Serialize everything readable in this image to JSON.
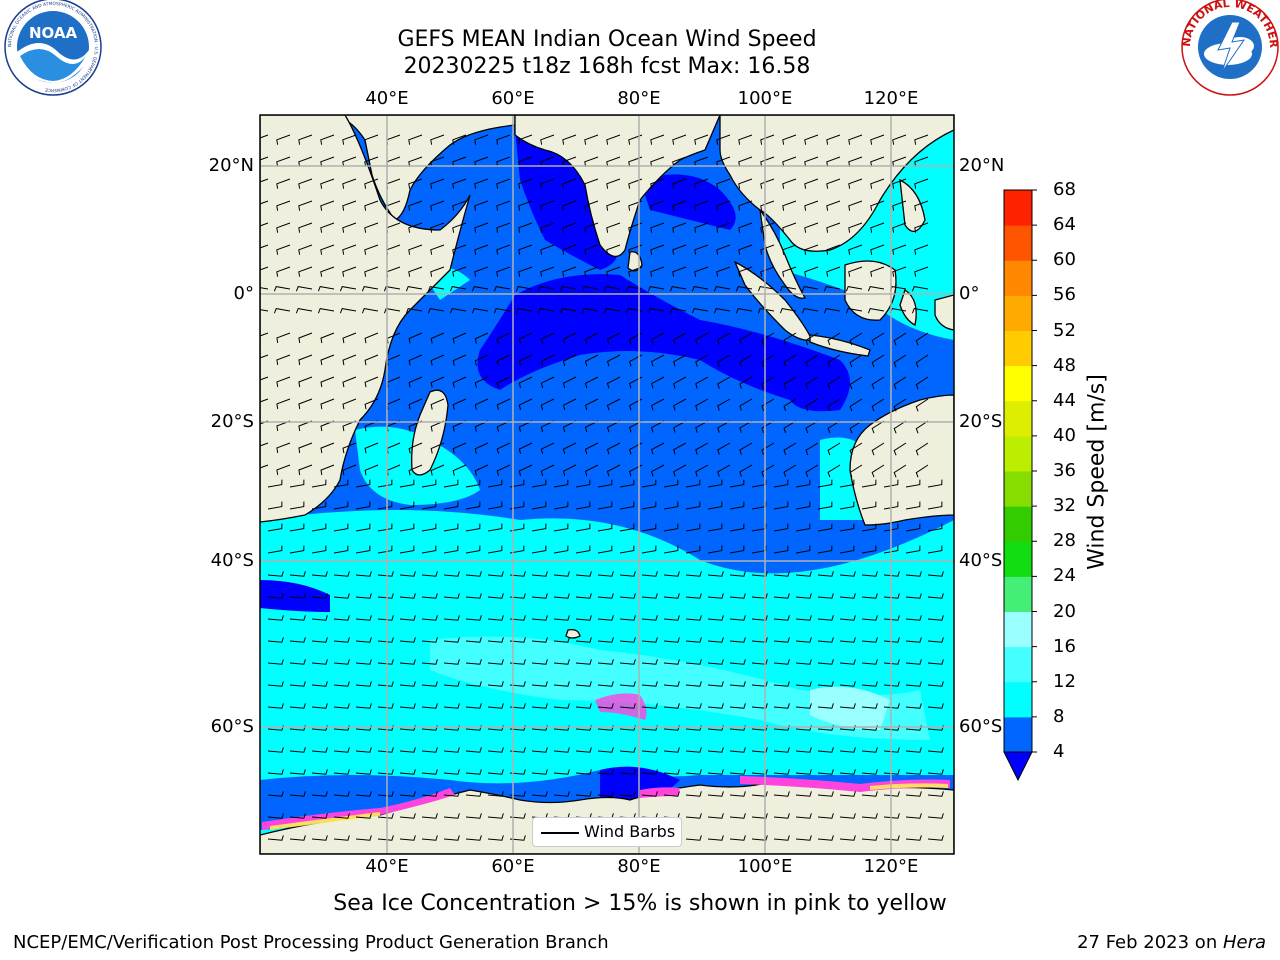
{
  "header": {
    "title_line1": "GEFS MEAN Indian Ocean Wind Speed",
    "title_line2": "20230225 t18z 168h fcst   Max: 16.58"
  },
  "logos": {
    "noaa": {
      "text": "NOAA",
      "ring_text": "NATIONAL OCEANIC AND ATMOSPHERIC ADMINISTRATION · U.S. DEPARTMENT OF COMMERCE"
    },
    "nws": {
      "ring_text": "NATIONAL WEATHER SERVICE"
    }
  },
  "map": {
    "projection_extent": {
      "lon": [
        20,
        130
      ],
      "lat": [
        -70,
        28
      ]
    },
    "lon_labels": [
      "40°E",
      "60°E",
      "80°E",
      "100°E",
      "120°E"
    ],
    "lat_labels": [
      "20°N",
      "0°",
      "20°S",
      "40°S",
      "60°S"
    ],
    "colors": {
      "land": "#efefdd",
      "gridline": "#b0b0b0",
      "sea_ice": "#ff44dd"
    },
    "legend_label": "Wind Barbs"
  },
  "colorbar": {
    "label": "Wind Speed [m/s]",
    "ticks": [
      "4",
      "8",
      "12",
      "16",
      "20",
      "24",
      "28",
      "32",
      "36",
      "40",
      "44",
      "48",
      "52",
      "56",
      "60",
      "64",
      "68"
    ],
    "colors": [
      "#0000ff",
      "#0066ff",
      "#00ffff",
      "#44ffff",
      "#99ffff",
      "#44ee77",
      "#11dd11",
      "#33cc00",
      "#88dd00",
      "#bbee00",
      "#ddee00",
      "#ffff00",
      "#ffcc00",
      "#ffaa00",
      "#ff8800",
      "#ff5500",
      "#ff2200",
      "#ff0000"
    ]
  },
  "note": "Sea Ice Concentration > 15% is shown in pink to yellow",
  "footer": {
    "left": "NCEP/EMC/Verification Post Processing Product Generation Branch",
    "right_prefix": "27 Feb 2023 on ",
    "right_host": "Hera"
  }
}
